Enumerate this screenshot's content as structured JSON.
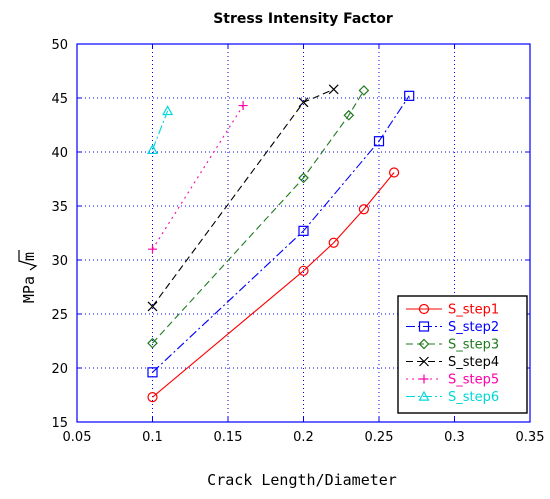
{
  "chart_data": {
    "type": "line",
    "title": "Stress Intensity Factor",
    "xlabel": "Crack Length/Diameter",
    "ylabel": "MPa",
    "ylabel_sqrt": "m",
    "xlim": [
      0.05,
      0.35
    ],
    "ylim": [
      15,
      50
    ],
    "xticks": [
      0.05,
      0.1,
      0.15,
      0.2,
      0.25,
      0.3,
      0.35
    ],
    "xtick_labels": [
      "0.05",
      "0.1",
      "0.15",
      "0.2",
      "0.25",
      "0.3",
      "0.35"
    ],
    "yticks": [
      15,
      20,
      25,
      30,
      35,
      40,
      45,
      50
    ],
    "ytick_labels": [
      "15",
      "20",
      "25",
      "30",
      "35",
      "40",
      "45",
      "50"
    ],
    "grid": true,
    "legend_position": "bottom-right",
    "series": [
      {
        "name": "S_step1",
        "color": "#ff0000",
        "marker": "circle",
        "dash": "solid",
        "x": [
          0.1,
          0.2,
          0.22,
          0.24,
          0.26
        ],
        "y": [
          17.3,
          29.0,
          31.6,
          34.7,
          38.1
        ]
      },
      {
        "name": "S_step2",
        "color": "#0000ff",
        "marker": "square",
        "dash": "dashdot",
        "x": [
          0.1,
          0.2,
          0.25,
          0.27
        ],
        "y": [
          19.6,
          32.7,
          41.0,
          45.2
        ]
      },
      {
        "name": "S_step3",
        "color": "#207a20",
        "marker": "diamond",
        "dash": "dashed",
        "x": [
          0.1,
          0.2,
          0.23,
          0.24
        ],
        "y": [
          22.3,
          37.6,
          43.4,
          45.7
        ]
      },
      {
        "name": "S_step4",
        "color": "#000000",
        "marker": "x",
        "dash": "dashed",
        "x": [
          0.1,
          0.2,
          0.22
        ],
        "y": [
          25.7,
          44.6,
          45.8
        ]
      },
      {
        "name": "S_step5",
        "color": "#ff00aa",
        "marker": "plus",
        "dash": "dotted",
        "x": [
          0.1,
          0.16
        ],
        "y": [
          31.0,
          44.3
        ]
      },
      {
        "name": "S_step6",
        "color": "#00d8d8",
        "marker": "triangle",
        "dash": "dashdot",
        "x": [
          0.1,
          0.11
        ],
        "y": [
          40.2,
          43.8
        ]
      }
    ]
  }
}
